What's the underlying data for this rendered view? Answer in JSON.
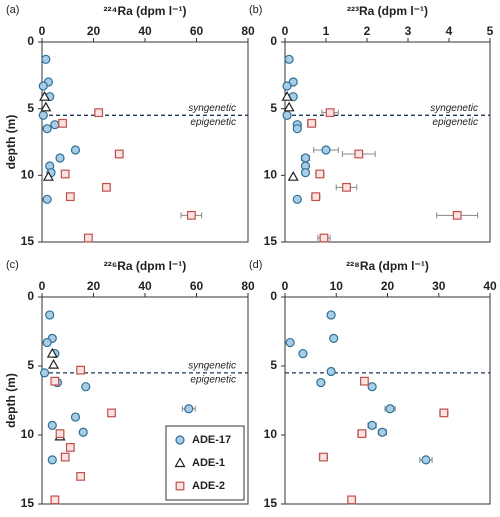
{
  "chart_data": [
    {
      "type": "scatter",
      "label": "(a)",
      "xlabel": "²²⁴Ra (dpm l⁻¹)",
      "ylabel": "depth (m)",
      "xlim": [
        0,
        80
      ],
      "xticks": [
        0,
        20,
        40,
        60,
        80
      ],
      "ylim": [
        0,
        15
      ],
      "yticks": [
        0,
        5,
        10,
        15
      ],
      "reference_line": 5.5,
      "annotations": [
        "syngenetic",
        "epigenetic"
      ],
      "series": [
        {
          "name": "ADE-17",
          "marker": "circle",
          "color": "#2e6f95",
          "x": [
            1.5,
            2.5,
            0.5,
            3,
            0.5,
            5,
            2,
            13,
            7,
            3,
            3.5,
            2
          ],
          "y": [
            1.3,
            3,
            3.3,
            4.1,
            5.5,
            6.2,
            6.5,
            8.1,
            8.7,
            9.3,
            9.8,
            11.8
          ]
        },
        {
          "name": "ADE-1",
          "marker": "triangle",
          "color": "#222222",
          "x": [
            1,
            1.5,
            2.5
          ],
          "y": [
            4.1,
            4.9,
            10.1
          ]
        },
        {
          "name": "ADE-2",
          "marker": "square",
          "color": "#c0504d",
          "x": [
            22,
            8,
            30,
            9,
            25,
            11,
            58,
            18
          ],
          "y": [
            5.3,
            6.1,
            8.4,
            9.9,
            10.9,
            11.6,
            13,
            14.7
          ],
          "xerr": [
            1.5,
            null,
            1.5,
            null,
            1.5,
            null,
            4,
            null
          ]
        }
      ]
    },
    {
      "type": "scatter",
      "label": "(b)",
      "xlabel": "²²³Ra (dpm l⁻¹)",
      "xlim": [
        0,
        5
      ],
      "xticks": [
        0,
        1,
        2,
        3,
        4,
        5
      ],
      "ylim": [
        0,
        15
      ],
      "yticks": [
        0,
        5,
        10,
        15
      ],
      "reference_line": 5.5,
      "annotations": [
        "syngenetic",
        "epigenetic"
      ],
      "series": [
        {
          "name": "ADE-17",
          "marker": "circle",
          "color": "#2e6f95",
          "x": [
            0.1,
            0.2,
            0.05,
            0.2,
            0.05,
            0.3,
            0.3,
            1.0,
            0.5,
            0.5,
            0.5,
            0.3
          ],
          "y": [
            1.3,
            3,
            3.3,
            4.1,
            5.5,
            6.2,
            6.5,
            8.1,
            8.7,
            9.3,
            9.8,
            11.8
          ],
          "xerr": [
            null,
            null,
            null,
            null,
            null,
            null,
            null,
            0.3,
            0.1,
            null,
            null,
            null
          ]
        },
        {
          "name": "ADE-1",
          "marker": "triangle",
          "color": "#222222",
          "x": [
            0.05,
            0.1,
            0.2
          ],
          "y": [
            4.1,
            4.9,
            10.1
          ]
        },
        {
          "name": "ADE-2",
          "marker": "square",
          "color": "#c0504d",
          "x": [
            1.1,
            0.65,
            1.8,
            0.85,
            1.5,
            0.75,
            4.2,
            0.95
          ],
          "y": [
            5.3,
            6.1,
            8.4,
            9.9,
            10.9,
            11.6,
            13,
            14.7
          ],
          "xerr": [
            0.2,
            0.1,
            0.4,
            0.1,
            0.25,
            0.1,
            0.5,
            0.15
          ]
        }
      ]
    },
    {
      "type": "scatter",
      "label": "(c)",
      "xlabel": "²²⁶Ra (dpm l⁻¹)",
      "ylabel": "depth (m)",
      "xlim": [
        0,
        80
      ],
      "xticks": [
        0,
        20,
        40,
        60,
        80
      ],
      "ylim": [
        0,
        15
      ],
      "yticks": [
        0,
        5,
        10,
        15
      ],
      "reference_line": 5.5,
      "annotations": [
        "syngenetic",
        "epigenetic"
      ],
      "legend": "lower right",
      "series": [
        {
          "name": "ADE-17",
          "marker": "circle",
          "color": "#2e6f95",
          "x": [
            3,
            4,
            2,
            5,
            1,
            6,
            17,
            57,
            13,
            4,
            16,
            4
          ],
          "y": [
            1.3,
            3,
            3.3,
            4.1,
            5.5,
            6.2,
            6.5,
            8.1,
            8.7,
            9.3,
            9.8,
            11.8
          ],
          "xerr": [
            null,
            null,
            null,
            null,
            null,
            null,
            null,
            2.5,
            null,
            null,
            null,
            null
          ]
        },
        {
          "name": "ADE-1",
          "marker": "triangle",
          "color": "#222222",
          "x": [
            4,
            4.5,
            7
          ],
          "y": [
            4.1,
            4.9,
            10.1
          ]
        },
        {
          "name": "ADE-2",
          "marker": "square",
          "color": "#c0504d",
          "x": [
            15,
            5,
            27,
            7,
            11,
            9,
            15,
            5
          ],
          "y": [
            5.3,
            6.1,
            8.4,
            9.9,
            10.9,
            11.6,
            13,
            14.7
          ]
        }
      ]
    },
    {
      "type": "scatter",
      "label": "(d)",
      "xlabel": "²²⁸Ra (dpm l⁻¹)",
      "xlim": [
        0,
        40
      ],
      "xticks": [
        0,
        10,
        20,
        30,
        40
      ],
      "ylim": [
        0,
        15
      ],
      "yticks": [
        0,
        5,
        10,
        15
      ],
      "reference_line": 5.5,
      "series": [
        {
          "name": "ADE-17",
          "marker": "circle",
          "color": "#2e6f95",
          "x": [
            9,
            9.5,
            1,
            3.5,
            9,
            7,
            17,
            20.5,
            17,
            19,
            27.5
          ],
          "y": [
            1.3,
            3,
            3.3,
            4.1,
            5.4,
            6.2,
            6.5,
            8.1,
            9.3,
            9.8,
            11.8
          ],
          "xerr": [
            null,
            null,
            null,
            null,
            null,
            null,
            null,
            1,
            0.8,
            0.8,
            1.2
          ]
        },
        {
          "name": "ADE-2",
          "marker": "square",
          "color": "#c0504d",
          "x": [
            15.5,
            31,
            15,
            7.5,
            13
          ],
          "y": [
            6.1,
            8.4,
            9.9,
            11.6,
            14.7
          ],
          "xerr": [
            0.6,
            0.8,
            0.8,
            0.8,
            0.6
          ]
        }
      ]
    }
  ]
}
